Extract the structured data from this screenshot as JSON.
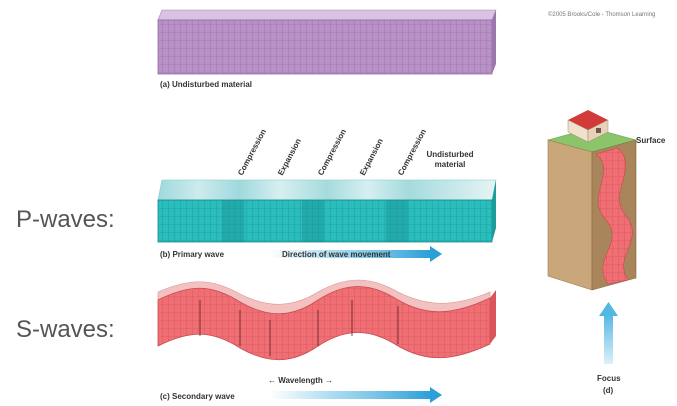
{
  "copyright": "©2005 Brooks/Cole - Thomson Learning",
  "panel_a": {
    "caption": "(a) Undisturbed material"
  },
  "panel_b": {
    "side_label": "P-waves:",
    "caption": "(b) Primary wave",
    "direction_label": "Direction of wave movement",
    "zone_labels": [
      "Compression",
      "Expansion",
      "Compression",
      "Expansion",
      "Compression"
    ],
    "undisturbed_label": "Undisturbed material"
  },
  "panel_c": {
    "side_label": "S-waves:",
    "caption": "(c) Secondary wave",
    "wavelength_label": "← Wavelength →"
  },
  "panel_d": {
    "surface_label": "Surface",
    "focus_label": "Focus",
    "caption": "(d)"
  },
  "colors": {
    "purple": "#b490c4",
    "teal": "#27b9b9",
    "pink": "#ee6e72",
    "arrow_blue": "#53b7e3",
    "ground_green": "#8cc46a",
    "ground_brown": "#c9a77a"
  }
}
